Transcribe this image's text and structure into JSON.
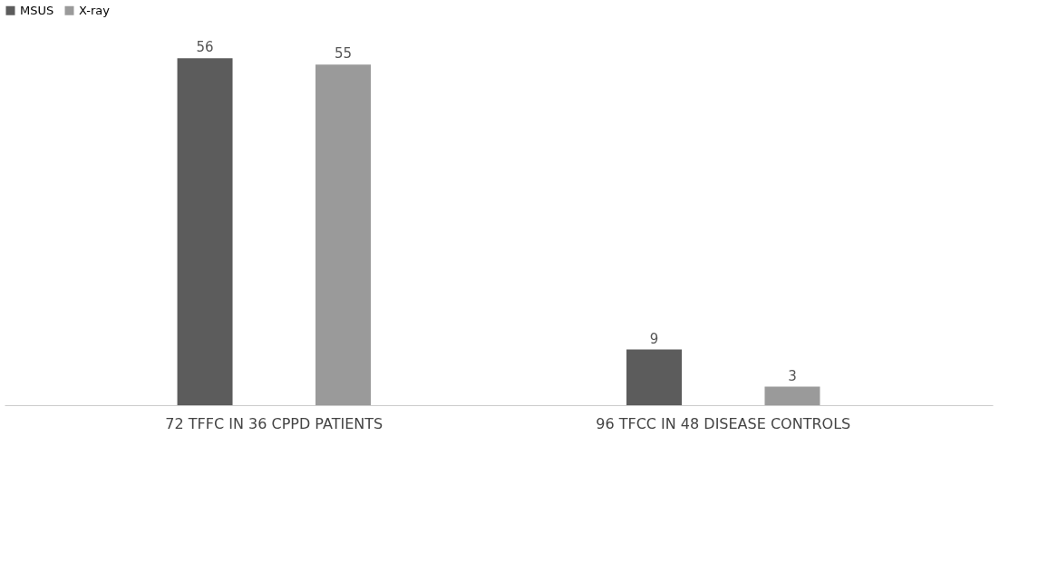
{
  "chart_data": {
    "type": "bar",
    "categories": [
      "72 TFFC IN 36 CPPD PATIENTS",
      "96 TFCC IN 48 DISEASE CONTROLS"
    ],
    "series": [
      {
        "name": "MSUS",
        "color": "#5c5c5c",
        "values": [
          56,
          9
        ]
      },
      {
        "name": "X-ray",
        "color": "#9a9a9a",
        "values": [
          55,
          3
        ]
      }
    ],
    "data_labels": true,
    "legend": "top",
    "grid": false
  }
}
